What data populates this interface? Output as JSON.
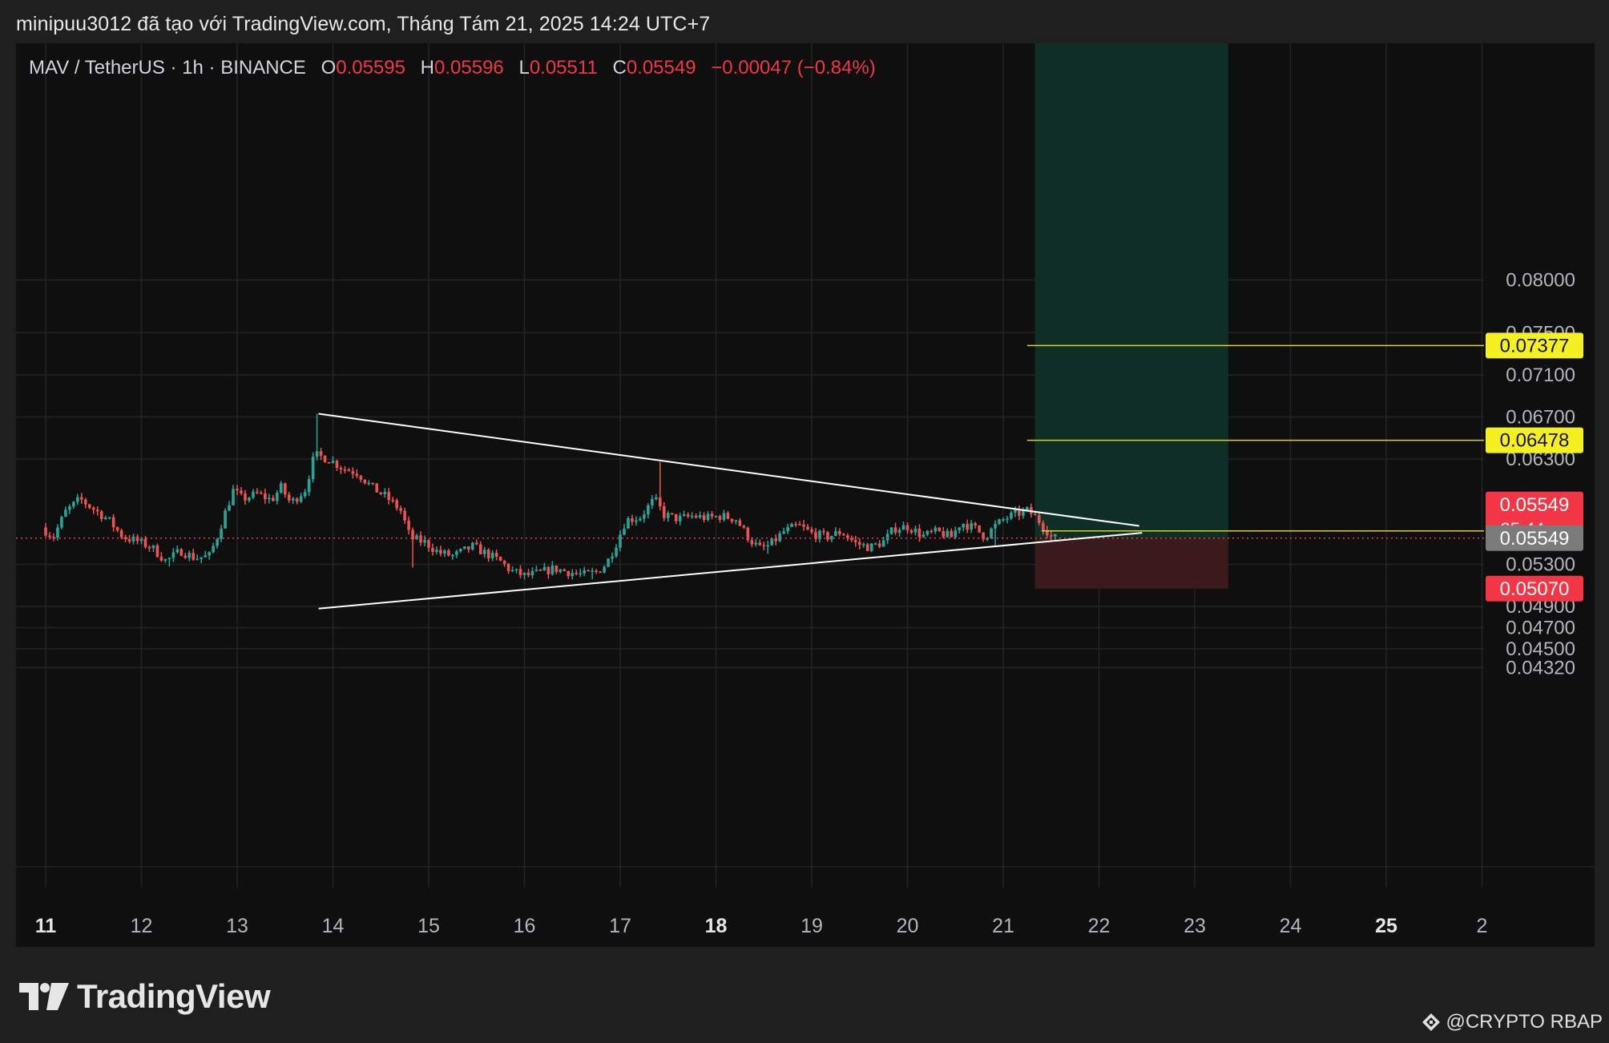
{
  "header": {
    "caption": "minipuu3012 đã tạo với TradingView.com, Tháng Tám 21, 2025 14:24 UTC+7"
  },
  "legend": {
    "symbol": "MAV / TetherUS · 1h · BINANCE",
    "open_label": "O",
    "open": "0.05595",
    "high_label": "H",
    "high": "0.05596",
    "low_label": "L",
    "low": "0.05511",
    "close_label": "C",
    "close": "0.05549",
    "change": "−0.00047 (−0.84%)"
  },
  "footer": {
    "logo_text": "TradingView",
    "credit": "@CRYPTO RBAP"
  },
  "colors": {
    "up": "#26a69a",
    "down": "#ef5350",
    "grid": "#242424",
    "target_zone": "#0f2e26",
    "stop_zone": "#3b1a1c",
    "yellow_line": "#d8d02e",
    "yellow_label": "#f5f021",
    "red_label": "#f23645",
    "gray_label": "#7b7b7b"
  },
  "chart_data": {
    "type": "candlestick",
    "interval": "1h",
    "x_ticks": [
      {
        "day": 11,
        "label": "11",
        "bold": true
      },
      {
        "day": 12,
        "label": "12"
      },
      {
        "day": 13,
        "label": "13"
      },
      {
        "day": 14,
        "label": "14"
      },
      {
        "day": 15,
        "label": "15"
      },
      {
        "day": 16,
        "label": "16"
      },
      {
        "day": 17,
        "label": "17"
      },
      {
        "day": 18,
        "label": "18",
        "bold": true
      },
      {
        "day": 19,
        "label": "19"
      },
      {
        "day": 20,
        "label": "20"
      },
      {
        "day": 21,
        "label": "21"
      },
      {
        "day": 22,
        "label": "22"
      },
      {
        "day": 23,
        "label": "23"
      },
      {
        "day": 24,
        "label": "24"
      },
      {
        "day": 25,
        "label": "25",
        "bold": true
      },
      {
        "day": 26,
        "label": "2"
      }
    ],
    "y_ticks": [
      "0.08000",
      "0.07500",
      "0.07100",
      "0.06700",
      "0.06300",
      "0.05300",
      "0.04900",
      "0.04700",
      "0.04500",
      "0.04320"
    ],
    "price_labels": [
      {
        "value": 0.07377,
        "text": "0.07377",
        "style": "yellow"
      },
      {
        "value": 0.06478,
        "text": "0.06478",
        "style": "yellow"
      },
      {
        "value": 0.05618,
        "text": "0.05618",
        "style": "yellow"
      },
      {
        "value": 0.05549,
        "text": "0.05549",
        "sub": "35:44",
        "style": "red"
      },
      {
        "value": 0.05549,
        "text": "0.05549",
        "style": "gray"
      },
      {
        "value": 0.0507,
        "text": "0.05070",
        "style": "red"
      }
    ],
    "horizontal_lines": [
      {
        "value": 0.07377,
        "from_day": 21.25
      },
      {
        "value": 0.06478,
        "from_day": 21.25
      },
      {
        "value": 0.05618,
        "from_day": 21.4
      }
    ],
    "current_price": 0.05549,
    "trendlines": [
      {
        "from": [
          13.85,
          0.0673
        ],
        "to": [
          22.42,
          0.05665
        ]
      },
      {
        "from": [
          13.85,
          0.0488
        ],
        "to": [
          22.45,
          0.056
        ]
      }
    ],
    "position": {
      "from_day": 21.33,
      "to_day": 23.35,
      "entry": 0.05549,
      "target": 0.0824,
      "stop": 0.0507
    },
    "path_points": [
      [
        11.0,
        0.0565
      ],
      [
        11.12,
        0.0556
      ],
      [
        11.25,
        0.058
      ],
      [
        11.4,
        0.0592
      ],
      [
        11.55,
        0.0582
      ],
      [
        11.7,
        0.0572
      ],
      [
        11.85,
        0.0556
      ],
      [
        12.0,
        0.0552
      ],
      [
        12.15,
        0.0546
      ],
      [
        12.3,
        0.0533
      ],
      [
        12.45,
        0.0543
      ],
      [
        12.6,
        0.0536
      ],
      [
        12.75,
        0.0538
      ],
      [
        12.82,
        0.0553
      ],
      [
        12.9,
        0.0575
      ],
      [
        13.0,
        0.06
      ],
      [
        13.1,
        0.0592
      ],
      [
        13.25,
        0.0597
      ],
      [
        13.4,
        0.0591
      ],
      [
        13.5,
        0.0603
      ],
      [
        13.6,
        0.0588
      ],
      [
        13.75,
        0.0601
      ],
      [
        13.85,
        0.0634
      ],
      [
        14.0,
        0.063
      ],
      [
        14.15,
        0.0621
      ],
      [
        14.3,
        0.0617
      ],
      [
        14.45,
        0.0603
      ],
      [
        14.6,
        0.0594
      ],
      [
        14.75,
        0.0581
      ],
      [
        14.85,
        0.0555
      ],
      [
        15.0,
        0.0551
      ],
      [
        15.15,
        0.0541
      ],
      [
        15.3,
        0.0538
      ],
      [
        15.5,
        0.0547
      ],
      [
        15.65,
        0.054
      ],
      [
        15.8,
        0.0532
      ],
      [
        15.9,
        0.0524
      ],
      [
        16.05,
        0.0519
      ],
      [
        16.2,
        0.0522
      ],
      [
        16.35,
        0.0526
      ],
      [
        16.5,
        0.0523
      ],
      [
        16.65,
        0.052
      ],
      [
        16.8,
        0.0523
      ],
      [
        16.9,
        0.0531
      ],
      [
        17.0,
        0.055
      ],
      [
        17.1,
        0.0572
      ],
      [
        17.25,
        0.0575
      ],
      [
        17.4,
        0.0592
      ],
      [
        17.5,
        0.0577
      ],
      [
        17.65,
        0.0573
      ],
      [
        17.8,
        0.0576
      ],
      [
        17.95,
        0.0574
      ],
      [
        18.1,
        0.0576
      ],
      [
        18.25,
        0.0573
      ],
      [
        18.4,
        0.0553
      ],
      [
        18.5,
        0.0545
      ],
      [
        18.6,
        0.0548
      ],
      [
        18.75,
        0.0561
      ],
      [
        18.9,
        0.0567
      ],
      [
        19.05,
        0.0559
      ],
      [
        19.2,
        0.0556
      ],
      [
        19.35,
        0.0561
      ],
      [
        19.5,
        0.055
      ],
      [
        19.65,
        0.0546
      ],
      [
        19.8,
        0.0552
      ],
      [
        19.9,
        0.0564
      ],
      [
        20.05,
        0.0566
      ],
      [
        20.2,
        0.0557
      ],
      [
        20.35,
        0.0561
      ],
      [
        20.5,
        0.0556
      ],
      [
        20.6,
        0.057
      ],
      [
        20.75,
        0.0564
      ],
      [
        20.85,
        0.0556
      ],
      [
        20.95,
        0.0566
      ],
      [
        21.05,
        0.0573
      ],
      [
        21.15,
        0.0577
      ],
      [
        21.3,
        0.0581
      ],
      [
        21.4,
        0.0573
      ],
      [
        21.5,
        0.0562
      ],
      [
        21.55,
        0.0555
      ]
    ],
    "spikes": [
      {
        "day": 13.85,
        "high": 0.0673
      },
      {
        "day": 17.42,
        "high": 0.0627
      },
      {
        "day": 14.85,
        "low": 0.0527
      },
      {
        "day": 12.3,
        "low": 0.0528
      },
      {
        "day": 16.7,
        "low": 0.0516
      },
      {
        "day": 18.55,
        "low": 0.054
      },
      {
        "day": 20.9,
        "low": 0.0548
      }
    ]
  }
}
